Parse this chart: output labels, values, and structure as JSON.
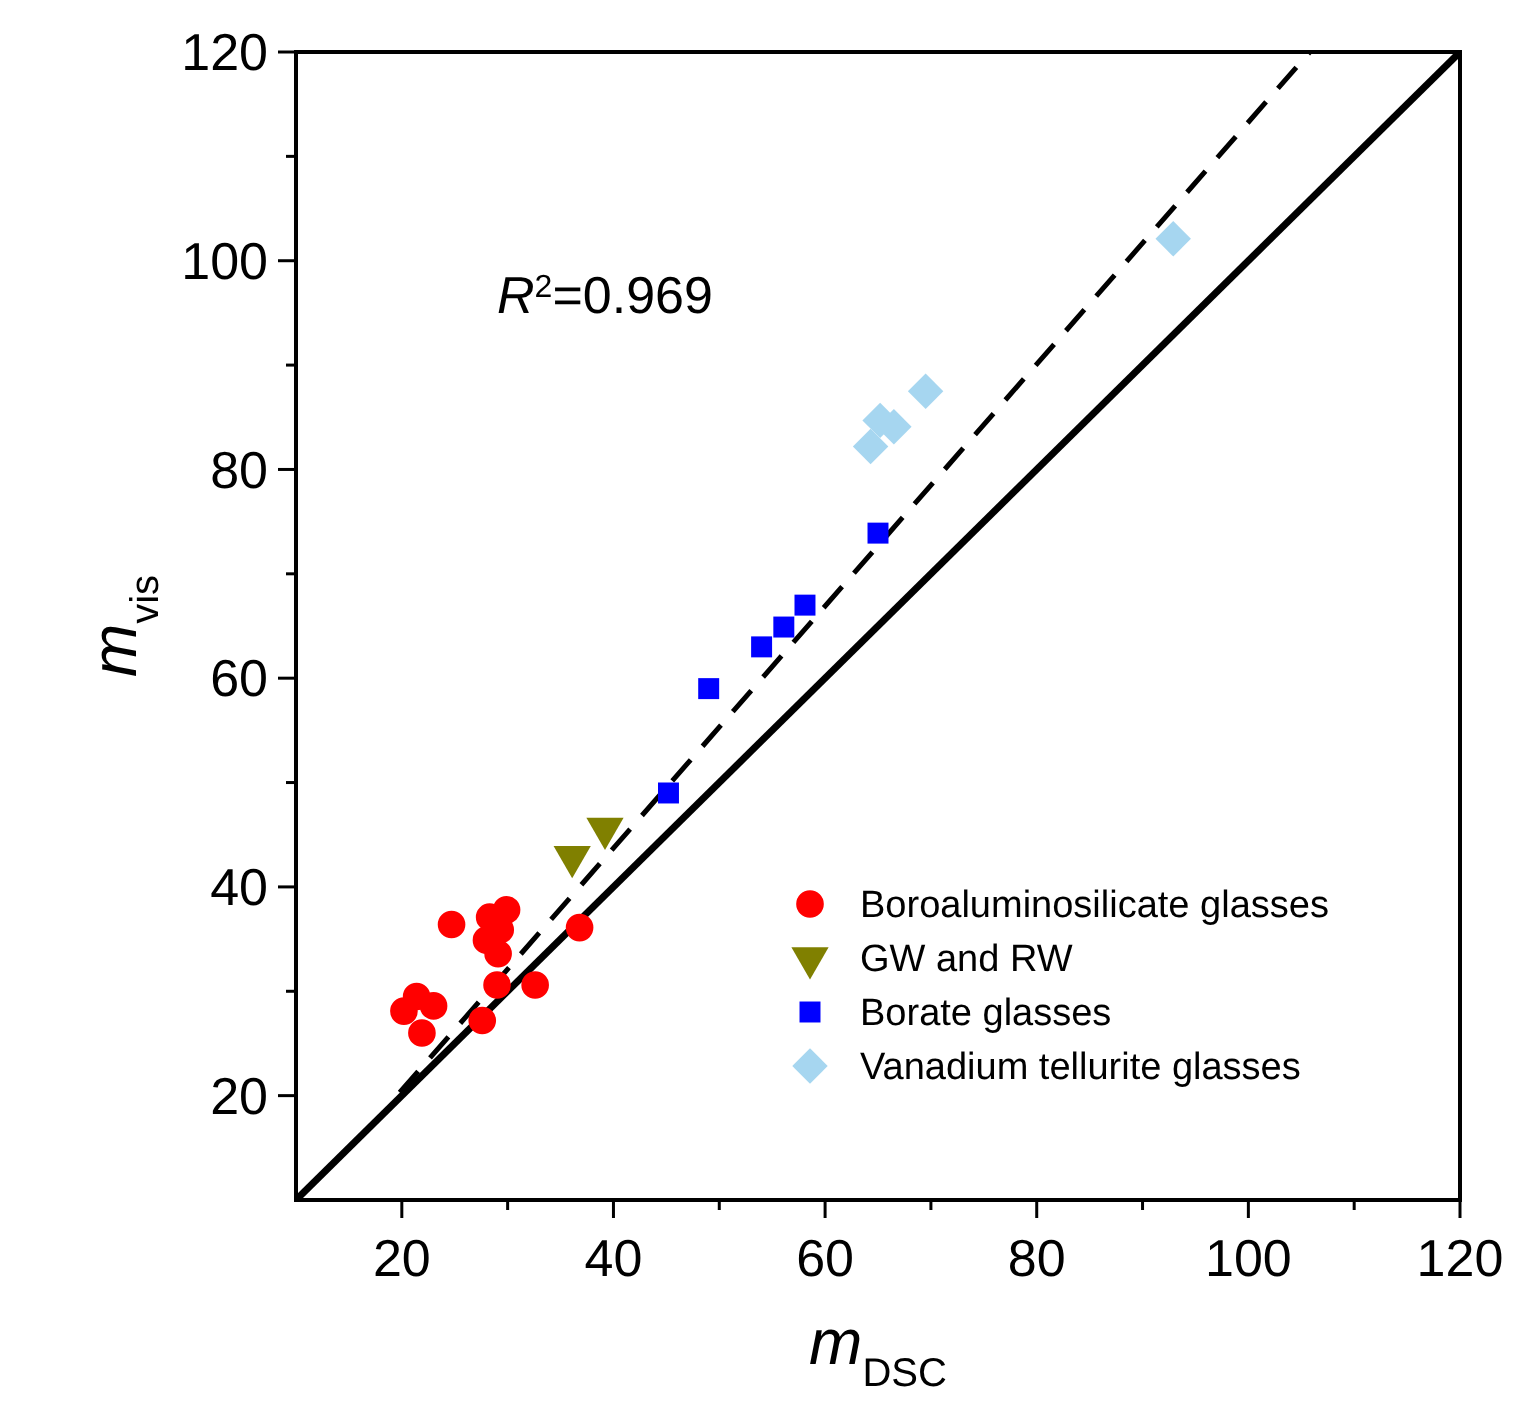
{
  "chart_data": {
    "type": "scatter",
    "xlabel": "m$_{DSC}$",
    "ylabel": "m$_{vis}$",
    "xlim": [
      10,
      120
    ],
    "ylim": [
      10,
      120
    ],
    "xticks": [
      20,
      {
        "value": 30,
        "label": null
      },
      40,
      {
        "value": 50,
        "label": null
      },
      60,
      {
        "value": 70,
        "label": null
      },
      80,
      {
        "value": 90,
        "label": null
      },
      100,
      {
        "value": 110,
        "label": null
      },
      120
    ],
    "yticks": [
      20,
      {
        "value": 30,
        "label": null
      },
      40,
      {
        "value": 50,
        "label": null
      },
      60,
      {
        "value": 70,
        "label": null
      },
      80,
      {
        "value": 90,
        "label": null
      },
      100,
      {
        "value": 110,
        "label": null
      },
      120
    ],
    "legend": "bottom right",
    "grid": false,
    "annotations": [
      "R$^{2}$=0.969"
    ],
    "series": [
      {
        "type": "line",
        "color": "#000000",
        "line_style": "solid",
        "x": [
          10,
          120
        ],
        "values": [
          10,
          120
        ]
      },
      {
        "type": "line",
        "color": "#000000",
        "line_style": "dashed",
        "x": [
          19.8,
          105.8
        ],
        "values": [
          20.3,
          120
        ]
      },
      {
        "name": "Boroaluminosilicate glasses",
        "color": "#ff0000",
        "marker": "circle",
        "x": [
          24.7,
          28.3,
          29.9,
          28.0,
          29.3,
          29.1,
          36.8,
          29.0,
          32.6,
          21.4,
          23.0,
          20.2,
          21.9,
          27.6
        ],
        "values": [
          36.4,
          37.1,
          37.8,
          34.9,
          35.9,
          33.6,
          36.1,
          30.6,
          30.6,
          29.5,
          28.6,
          28.1,
          26.0,
          27.2
        ]
      },
      {
        "name": "GW and RW",
        "color": "#808000",
        "marker": "triangle-down",
        "x": [
          36.1,
          39.2
        ],
        "values": [
          42.9,
          45.6
        ]
      },
      {
        "name": "Borate glasses",
        "color": "#0000ff",
        "marker": "square",
        "x": [
          45.2,
          49.0,
          54.0,
          56.1,
          58.1,
          65.0
        ],
        "values": [
          49.0,
          59.0,
          63.0,
          64.9,
          67.0,
          73.9
        ]
      },
      {
        "name": "Vanadium tellurite glasses",
        "color": "#a6d6f0",
        "marker": "diamond",
        "x": [
          64.3,
          65.2,
          66.5,
          69.5,
          92.9
        ],
        "values": [
          82.2,
          84.7,
          84.1,
          87.5,
          102.1
        ]
      }
    ]
  }
}
